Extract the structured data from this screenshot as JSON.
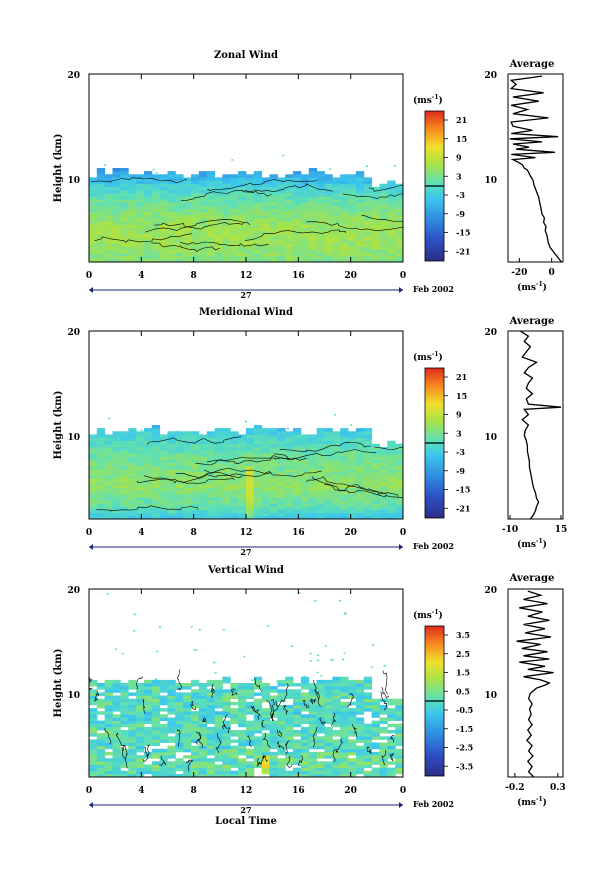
{
  "chart_data": [
    {
      "type": "heatmap",
      "title": "Zonal Wind",
      "ylabel": "Height (km)",
      "xlabel": "",
      "x_ticks": [
        "0",
        "4",
        "8",
        "12",
        "16",
        "20",
        "0"
      ],
      "y_ticks": [
        "20",
        "10"
      ],
      "ylim": [
        2,
        20
      ],
      "xlim": [
        0,
        24
      ],
      "date_day": "27",
      "date_label": "Feb 2002",
      "colorbar": {
        "unit": "(ms",
        "unit_sup": "-1",
        "unit_close": ")",
        "tick_labels": [
          "21",
          "15",
          "9",
          "3",
          "-3",
          "-9",
          "-15",
          "-21"
        ],
        "range": [
          -24,
          24
        ]
      },
      "field_profile": {
        "levels_km": [
          2,
          3,
          4,
          5,
          6,
          7,
          8,
          9,
          10,
          11
        ],
        "values": [
          4,
          5,
          6,
          6,
          5,
          3,
          1,
          -2,
          -6,
          -10
        ]
      },
      "profile": {
        "title": "Average",
        "xlabel": "(ms",
        "xlabel_sup": "-1",
        "xlabel_close": ")",
        "x_ticks": [
          "-20",
          "0"
        ],
        "y_ticks": [
          "20",
          "10"
        ],
        "xlim": [
          -27,
          7
        ],
        "ylim": [
          2,
          20
        ],
        "points": [
          [
            6,
            2.0
          ],
          [
            4.5,
            2.3
          ],
          [
            3,
            2.6
          ],
          [
            1,
            3.0
          ],
          [
            -1,
            3.4
          ],
          [
            -2,
            3.8
          ],
          [
            -2.5,
            4.2
          ],
          [
            -3,
            4.6
          ],
          [
            -4,
            5.0
          ],
          [
            -3.5,
            5.4
          ],
          [
            -5,
            5.8
          ],
          [
            -4.5,
            6.2
          ],
          [
            -6,
            6.6
          ],
          [
            -6.5,
            7.0
          ],
          [
            -7,
            7.4
          ],
          [
            -7.5,
            7.8
          ],
          [
            -8,
            8.2
          ],
          [
            -9,
            8.6
          ],
          [
            -10,
            9.0
          ],
          [
            -11,
            9.4
          ],
          [
            -11.5,
            9.8
          ],
          [
            -13,
            10.2
          ],
          [
            -14,
            10.5
          ],
          [
            -15,
            10.8
          ],
          [
            -17,
            11.0
          ],
          [
            -18,
            11.3
          ],
          [
            -20,
            11.5
          ],
          [
            -24,
            11.8
          ],
          [
            -10,
            12.0
          ],
          [
            -25,
            12.3
          ],
          [
            2,
            12.5
          ],
          [
            -22,
            12.8
          ],
          [
            -14,
            13.0
          ],
          [
            -24,
            13.3
          ],
          [
            -6,
            13.5
          ],
          [
            -26,
            13.8
          ],
          [
            4,
            14.0
          ],
          [
            -25,
            14.3
          ],
          [
            -12,
            14.6
          ],
          [
            -24,
            15.0
          ],
          [
            -25,
            15.4
          ],
          [
            -2,
            15.8
          ],
          [
            -24,
            16.2
          ],
          [
            -15,
            16.6
          ],
          [
            -25,
            17.0
          ],
          [
            -8,
            17.4
          ],
          [
            -24,
            17.8
          ],
          [
            -5,
            18.2
          ],
          [
            -25,
            18.6
          ],
          [
            -22,
            19.0
          ],
          [
            -25,
            19.4
          ],
          [
            -6,
            19.8
          ]
        ]
      }
    },
    {
      "type": "heatmap",
      "title": "Meridional Wind",
      "ylabel": "Height (km)",
      "xlabel": "",
      "x_ticks": [
        "0",
        "4",
        "8",
        "12",
        "16",
        "20",
        "0"
      ],
      "y_ticks": [
        "20",
        "10"
      ],
      "ylim": [
        2,
        20
      ],
      "xlim": [
        0,
        24
      ],
      "date_day": "27",
      "date_label": "Feb 2002",
      "colorbar": {
        "unit": "(ms",
        "unit_sup": "-1",
        "unit_close": ")",
        "tick_labels": [
          "21",
          "15",
          "9",
          "3",
          "-3",
          "-9",
          "-15",
          "-21"
        ],
        "range": [
          -24,
          24
        ]
      },
      "field_profile": {
        "levels_km": [
          2,
          3,
          4,
          5,
          6,
          7,
          8,
          9,
          10,
          11
        ],
        "values": [
          -3,
          1,
          3,
          5,
          4,
          3,
          2,
          0,
          -2,
          -6
        ]
      },
      "profile": {
        "title": "Average",
        "xlabel": "(ms",
        "xlabel_sup": "-1",
        "xlabel_close": ")",
        "x_ticks": [
          "-10",
          "15"
        ],
        "y_ticks": [
          "20",
          "10"
        ],
        "xlim": [
          -11,
          16
        ],
        "ylim": [
          2,
          20
        ],
        "points": [
          [
            0,
            2.0
          ],
          [
            1.5,
            2.4
          ],
          [
            2.5,
            2.8
          ],
          [
            3,
            3.2
          ],
          [
            4,
            3.6
          ],
          [
            3,
            4.0
          ],
          [
            2.5,
            4.5
          ],
          [
            1.5,
            5.0
          ],
          [
            1,
            5.5
          ],
          [
            0.5,
            6.0
          ],
          [
            0,
            6.5
          ],
          [
            -0.5,
            7.0
          ],
          [
            -0.5,
            7.5
          ],
          [
            -1,
            8.0
          ],
          [
            -1.5,
            8.5
          ],
          [
            -1.5,
            9.0
          ],
          [
            -2,
            9.5
          ],
          [
            -3,
            10.0
          ],
          [
            -2.5,
            10.5
          ],
          [
            -1,
            11.0
          ],
          [
            -4,
            11.5
          ],
          [
            -1,
            12.0
          ],
          [
            -3,
            12.5
          ],
          [
            15,
            12.7
          ],
          [
            -1,
            13.0
          ],
          [
            -2,
            13.5
          ],
          [
            1,
            14.0
          ],
          [
            -2,
            14.5
          ],
          [
            -1,
            15.0
          ],
          [
            1,
            15.5
          ],
          [
            -3,
            16.0
          ],
          [
            -1,
            16.5
          ],
          [
            3,
            17.0
          ],
          [
            -4,
            17.5
          ],
          [
            -2,
            18.0
          ],
          [
            0,
            18.5
          ],
          [
            -3,
            19.0
          ],
          [
            -1,
            19.5
          ],
          [
            -5,
            20.0
          ]
        ]
      }
    },
    {
      "type": "heatmap",
      "title": "Vertical Wind",
      "ylabel": "Height (km)",
      "xlabel": "Local Time",
      "x_ticks": [
        "0",
        "4",
        "8",
        "12",
        "16",
        "20",
        "0"
      ],
      "y_ticks": [
        "20",
        "10"
      ],
      "ylim": [
        2,
        20
      ],
      "xlim": [
        0,
        24
      ],
      "date_day": "27",
      "date_label": "Feb 2002",
      "colorbar": {
        "unit": "(ms",
        "unit_sup": "-1",
        "unit_close": ")",
        "tick_labels": [
          "3.5",
          "2.5",
          "1.5",
          "0.5",
          "-0.5",
          "-1.5",
          "-2.5",
          "-3.5"
        ],
        "range": [
          -4,
          4
        ]
      },
      "field_profile": {
        "levels_km": [
          2,
          3,
          4,
          5,
          6,
          7,
          8,
          9,
          10,
          11
        ],
        "values": [
          0,
          0.3,
          0.2,
          -0.1,
          0.1,
          0,
          -0.2,
          0.1,
          0,
          -0.1
        ]
      },
      "profile": {
        "title": "Average",
        "xlabel": "(ms",
        "xlabel_sup": "-1",
        "xlabel_close": ")",
        "x_ticks": [
          "-0.2",
          "0.3"
        ],
        "y_ticks": [
          "20",
          "10"
        ],
        "xlim": [
          -0.28,
          0.36
        ],
        "ylim": [
          2,
          20
        ],
        "points": [
          [
            0.02,
            2.0
          ],
          [
            -0.04,
            2.5
          ],
          [
            0.0,
            3.0
          ],
          [
            -0.05,
            3.5
          ],
          [
            0.01,
            4.0
          ],
          [
            -0.04,
            4.5
          ],
          [
            0.0,
            5.0
          ],
          [
            -0.06,
            5.5
          ],
          [
            -0.01,
            6.0
          ],
          [
            -0.05,
            6.5
          ],
          [
            0.0,
            7.0
          ],
          [
            -0.04,
            7.5
          ],
          [
            -0.01,
            8.0
          ],
          [
            -0.03,
            8.5
          ],
          [
            0.0,
            9.0
          ],
          [
            -0.04,
            9.5
          ],
          [
            -0.02,
            10.0
          ],
          [
            0.05,
            10.5
          ],
          [
            0.15,
            10.8
          ],
          [
            0.2,
            11.0
          ],
          [
            0.1,
            11.3
          ],
          [
            -0.1,
            11.6
          ],
          [
            0.25,
            12.0
          ],
          [
            -0.05,
            12.3
          ],
          [
            0.15,
            12.6
          ],
          [
            -0.15,
            13.0
          ],
          [
            0.2,
            13.3
          ],
          [
            -0.1,
            13.6
          ],
          [
            0.18,
            14.0
          ],
          [
            -0.12,
            14.3
          ],
          [
            0.1,
            14.7
          ],
          [
            -0.18,
            15.0
          ],
          [
            0.22,
            15.4
          ],
          [
            -0.08,
            15.8
          ],
          [
            0.15,
            16.2
          ],
          [
            -0.1,
            16.6
          ],
          [
            0.2,
            17.0
          ],
          [
            -0.05,
            17.4
          ],
          [
            0.12,
            17.8
          ],
          [
            -0.15,
            18.2
          ],
          [
            0.18,
            18.6
          ],
          [
            -0.1,
            19.0
          ],
          [
            0.1,
            19.4
          ],
          [
            -0.05,
            19.8
          ]
        ]
      }
    }
  ]
}
